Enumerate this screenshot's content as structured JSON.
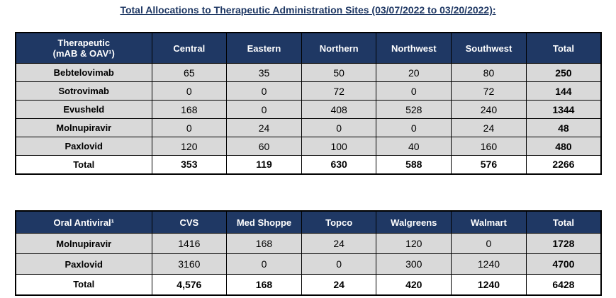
{
  "page": {
    "title": "Total Allocations to Therapeutic Administration Sites (03/07/2022 to 03/20/2022):"
  },
  "colors": {
    "header_bg": "#1F3864",
    "header_text": "#FFFFFF",
    "data_row_bg": "#D9D9D9",
    "total_row_bg": "#FFFFFF",
    "title_text": "#1F3864",
    "border": "#000000"
  },
  "table1": {
    "col_header_line1": "Therapeutic",
    "col_header_line2": "(mAB & OAV¹)",
    "columns": [
      "Central",
      "Eastern",
      "Northern",
      "Northwest",
      "Southwest",
      "Total"
    ],
    "rows": [
      {
        "label": "Bebtelovimab",
        "values": [
          "65",
          "35",
          "50",
          "20",
          "80"
        ],
        "total": "250"
      },
      {
        "label": "Sotrovimab",
        "values": [
          "0",
          "0",
          "72",
          "0",
          "72"
        ],
        "total": "144"
      },
      {
        "label": "Evusheld",
        "values": [
          "168",
          "0",
          "408",
          "528",
          "240"
        ],
        "total": "1344"
      },
      {
        "label": "Molnupiravir",
        "values": [
          "0",
          "24",
          "0",
          "0",
          "24"
        ],
        "total": "48"
      },
      {
        "label": "Paxlovid",
        "values": [
          "120",
          "60",
          "100",
          "40",
          "160"
        ],
        "total": "480"
      }
    ],
    "total_row": {
      "label": "Total",
      "values": [
        "353",
        "119",
        "630",
        "588",
        "576"
      ],
      "total": "2266"
    }
  },
  "table2": {
    "col_header": "Oral Antiviral¹",
    "columns": [
      "CVS",
      "Med Shoppe",
      "Topco",
      "Walgreens",
      "Walmart",
      "Total"
    ],
    "rows": [
      {
        "label": "Molnupiravir",
        "values": [
          "1416",
          "168",
          "24",
          "120",
          "0"
        ],
        "total": "1728"
      },
      {
        "label": "Paxlovid",
        "values": [
          "3160",
          "0",
          "0",
          "300",
          "1240"
        ],
        "total": "4700"
      }
    ],
    "total_row": {
      "label": "Total",
      "values": [
        "4,576",
        "168",
        "24",
        "420",
        "1240"
      ],
      "total": "6428"
    }
  }
}
